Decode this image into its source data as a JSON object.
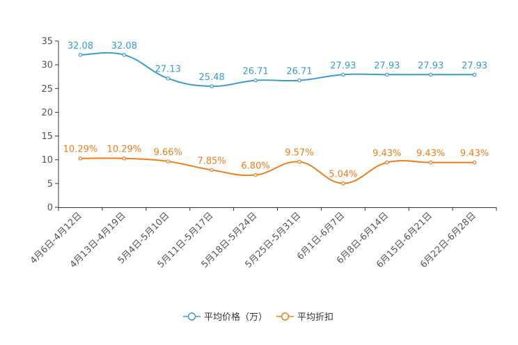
{
  "chart_data": {
    "type": "line",
    "title": "",
    "xlabel": "",
    "ylabel": "",
    "ylim": [
      0,
      35
    ],
    "yticks": [
      0,
      5,
      10,
      15,
      20,
      25,
      30,
      35
    ],
    "categories": [
      "4月6日-4月12日",
      "4月13日-4月19日",
      "5月4日-5月10日",
      "5月11日-5月17日",
      "5月18日-5月24日",
      "5月25日-5月31日",
      "6月1日-6月7日",
      "6月8日-6月14日",
      "6月15日-6月21日",
      "6月22日-6月28日"
    ],
    "series": [
      {
        "name": "平均价格（万）",
        "color": "#3a9bd0",
        "values": [
          32.08,
          32.08,
          27.13,
          25.48,
          26.71,
          26.71,
          27.93,
          27.93,
          27.93,
          27.93
        ],
        "labels": [
          "32.08",
          "32.08",
          "27.13",
          "25.48",
          "26.71",
          "26.71",
          "27.93",
          "27.93",
          "27.93",
          "27.93"
        ]
      },
      {
        "name": "平均折扣",
        "color": "#ef7d1a",
        "values": [
          10.29,
          10.29,
          9.66,
          7.85,
          6.8,
          9.57,
          5.04,
          9.43,
          9.43,
          9.43
        ],
        "labels": [
          "10.29%",
          "10.29%",
          "9.66%",
          "7.85%",
          "6.80%",
          "9.57%",
          "5.04%",
          "9.43%",
          "9.43%",
          "9.43%"
        ]
      }
    ],
    "legend_position": "bottom-center",
    "smooth": true,
    "grid": false
  }
}
